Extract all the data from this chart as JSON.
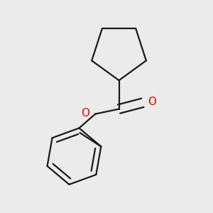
{
  "background_color": "#ebebeb",
  "line_color": "#1a1a1a",
  "oxygen_color": "#ee0000",
  "line_width": 1.6,
  "dbo": 0.018,
  "figsize": [
    3.0,
    3.0
  ],
  "dpi": 100
}
